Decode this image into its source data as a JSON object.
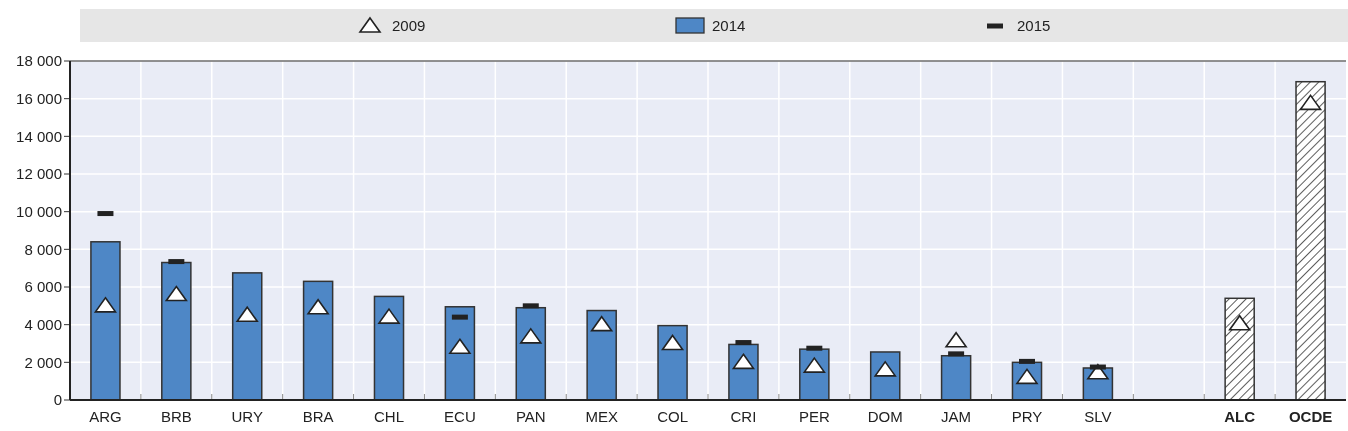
{
  "chart_data": {
    "type": "bar",
    "categories": [
      "ARG",
      "BRB",
      "URY",
      "BRA",
      "CHL",
      "ECU",
      "PAN",
      "MEX",
      "COL",
      "CRI",
      "PER",
      "DOM",
      "JAM",
      "PRY",
      "SLV",
      null,
      "ALC",
      "OCDE"
    ],
    "series": [
      {
        "name": "2009",
        "type": "scatter",
        "marker": "triangle",
        "color": "#ffffff",
        "values": [
          5000,
          5600,
          4500,
          4900,
          4400,
          2800,
          3350,
          4000,
          3000,
          2000,
          1800,
          1600,
          3150,
          1200,
          1450,
          null,
          4050,
          15750
        ]
      },
      {
        "name": "2014",
        "color": "#4e87c6",
        "colors": [
          "#4e87c6",
          "#4e87c6",
          "#4e87c6",
          "#4e87c6",
          "#4e87c6",
          "#4e87c6",
          "#4e87c6",
          "#4e87c6",
          "#4e87c6",
          "#4e87c6",
          "#4e87c6",
          "#4e87c6",
          "#4e87c6",
          "#4e87c6",
          "#4e87c6",
          "#4e87c6",
          "#333333",
          "#333333"
        ],
        "values": [
          8400,
          7300,
          6750,
          6300,
          5500,
          4950,
          4900,
          4750,
          3950,
          2950,
          2700,
          2550,
          2350,
          2000,
          1700,
          null,
          5400,
          16900
        ]
      },
      {
        "name": "2015",
        "type": "scatter",
        "marker": "square",
        "color": "#222222",
        "values": [
          9900,
          7350,
          null,
          null,
          null,
          4400,
          5000,
          null,
          null,
          3050,
          2750,
          null,
          2450,
          2050,
          1750,
          null,
          null,
          null
        ]
      }
    ],
    "ylim": [
      0,
      18000
    ],
    "yticks": [
      0,
      {
        "value": 2000,
        "label": "2 000"
      },
      {
        "value": 4000,
        "label": "4 000"
      },
      {
        "value": 6000,
        "label": "6 000"
      },
      {
        "value": 8000,
        "label": "8 000"
      },
      {
        "value": 10000,
        "label": "10 000"
      },
      {
        "value": 12000,
        "label": "12 000"
      },
      {
        "value": 14000,
        "label": "14 000"
      },
      {
        "value": 16000,
        "label": "16 000"
      },
      {
        "value": 18000,
        "label": "18 000"
      }
    ],
    "grid": true,
    "legend": "top"
  }
}
